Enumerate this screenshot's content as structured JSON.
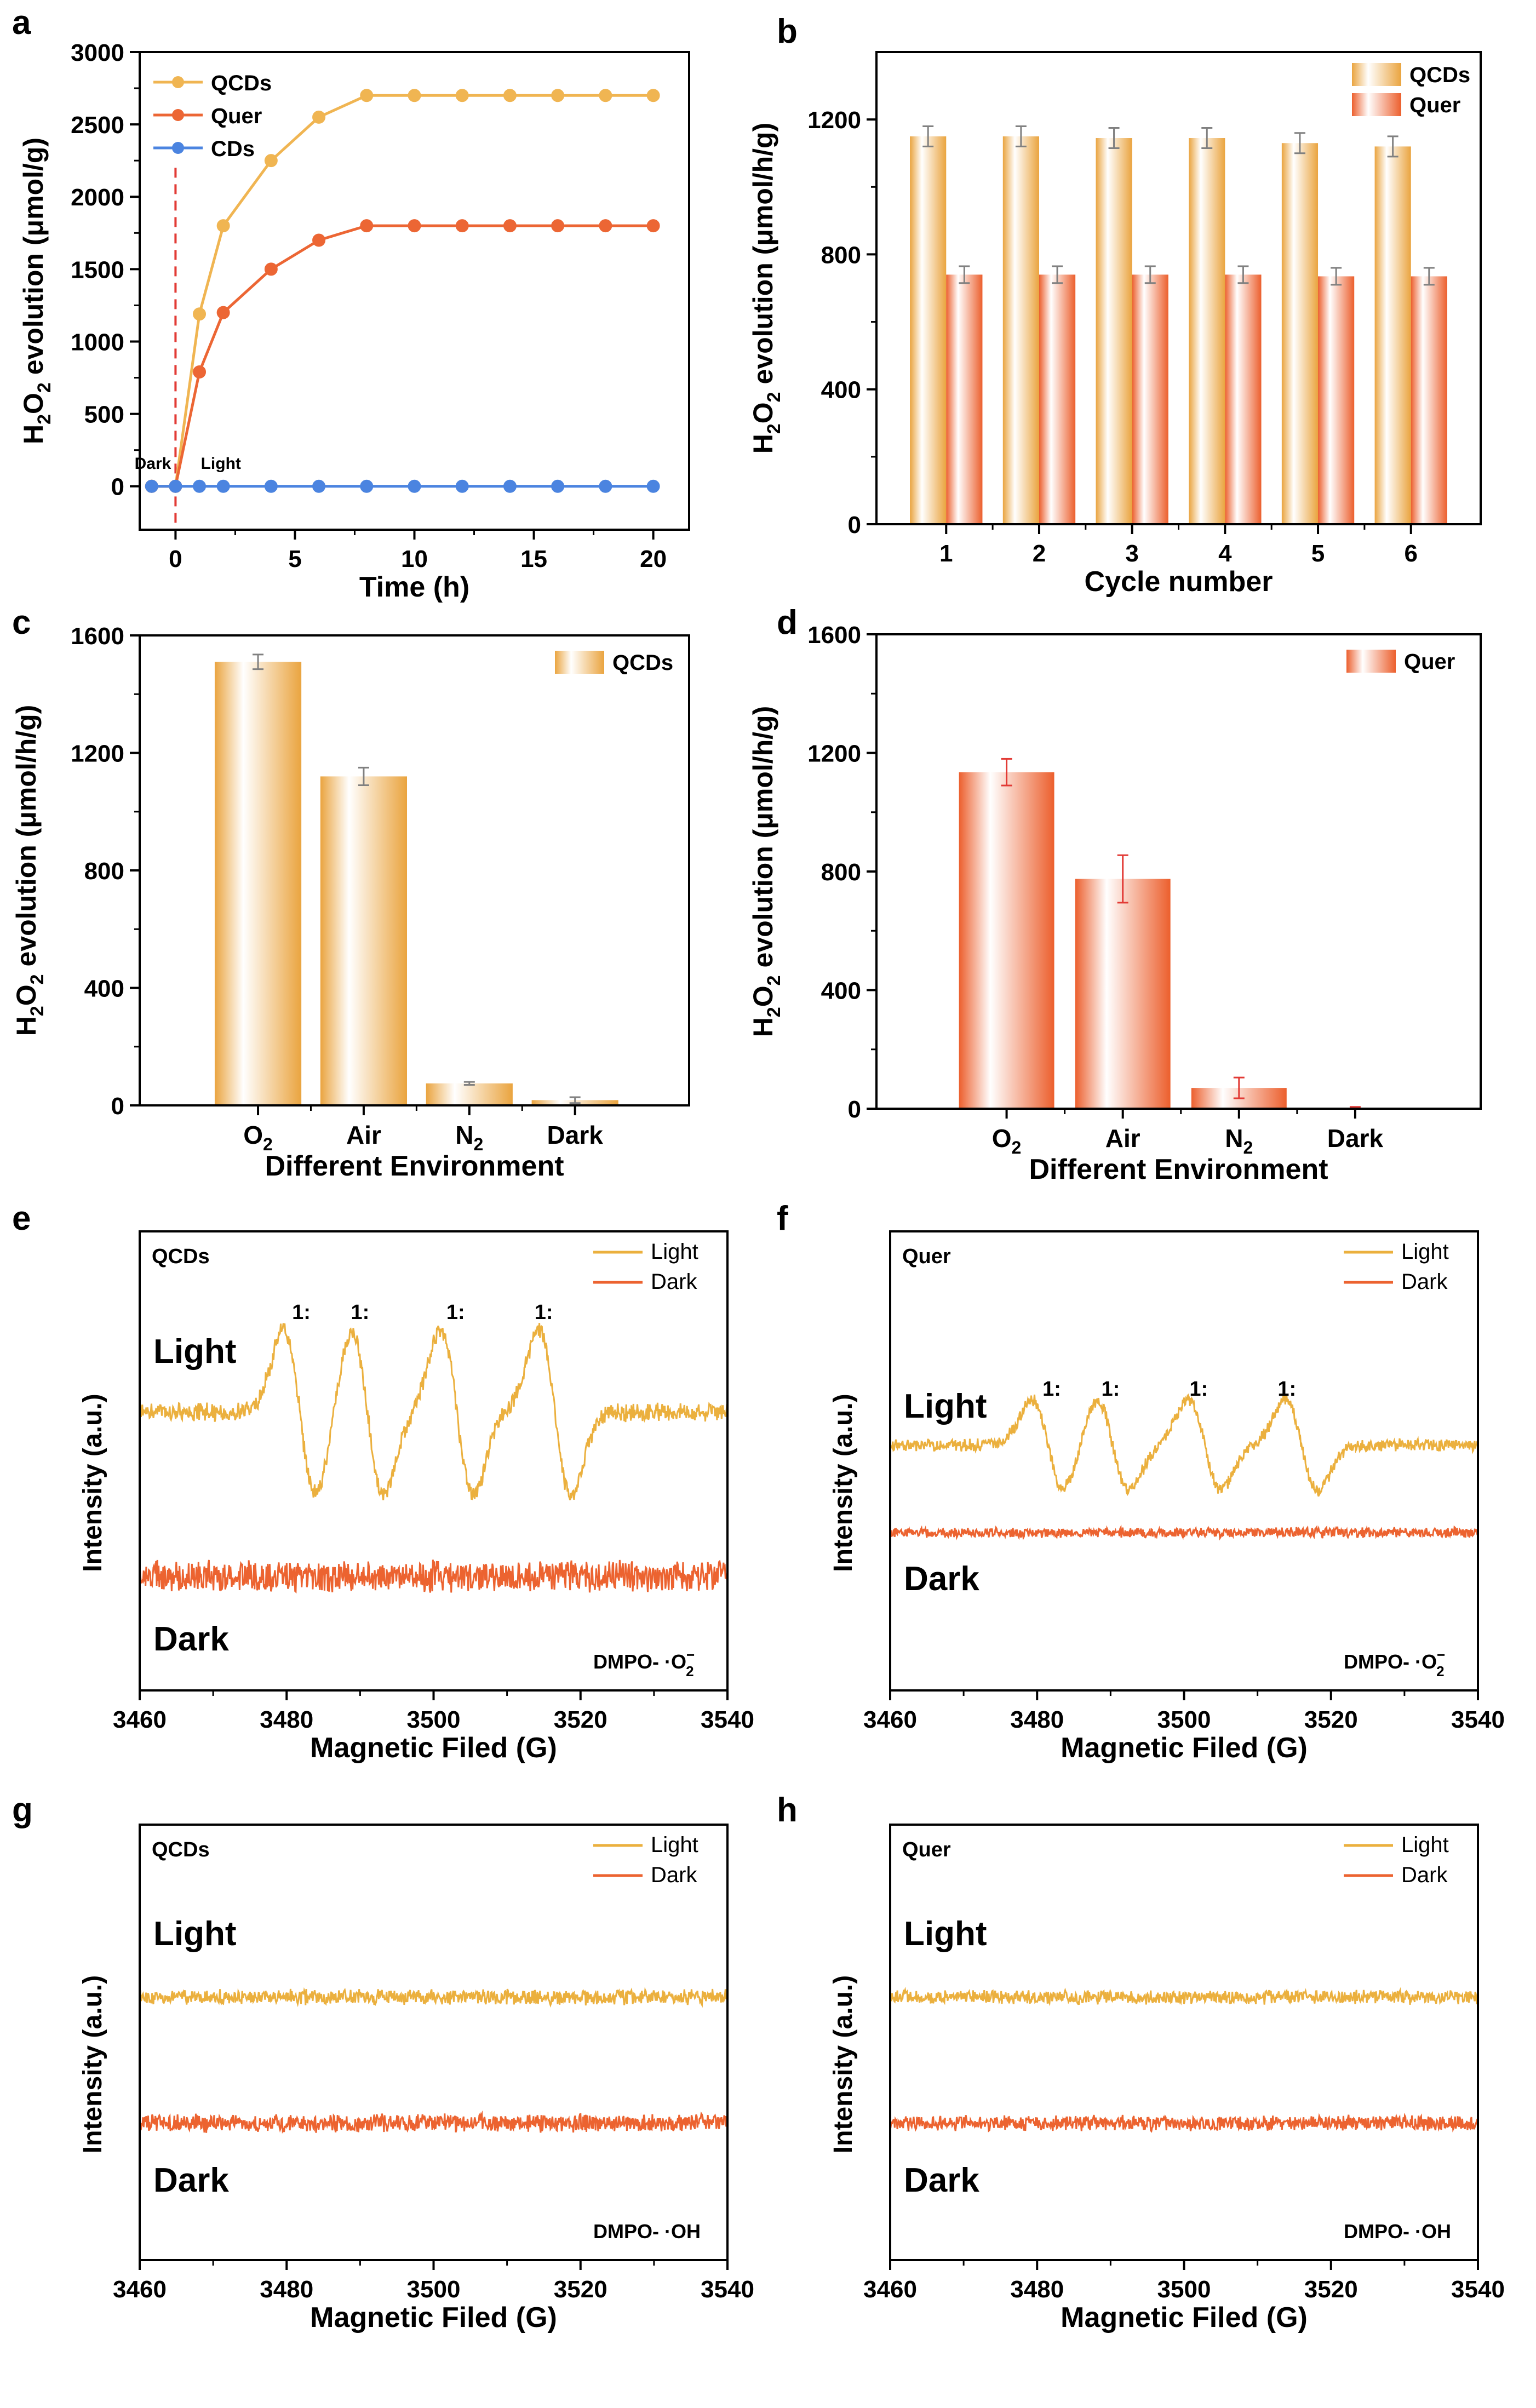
{
  "colors": {
    "qcds": "#F0B552",
    "quer": "#EC6634",
    "cds": "#4B84E0",
    "light": "#EBB03E",
    "dark": "#EC6330",
    "err": "#E23A35",
    "gray": "#808080"
  },
  "chart_data": [
    {
      "id": "a",
      "type": "line",
      "panel_label": "a",
      "xlabel": "Time (h)",
      "ylabel_parts": [
        "H",
        "2",
        "O",
        "2",
        " evolution (μmol/g)"
      ],
      "xlim": [
        -1.5,
        21.5
      ],
      "ylim": [
        -300,
        3000
      ],
      "xticks": [
        0,
        5,
        10,
        15,
        20
      ],
      "yticks": [
        0,
        500,
        1000,
        1500,
        2000,
        2500,
        3000
      ],
      "series": [
        {
          "name": "QCDs",
          "color_key": "qcds",
          "x": [
            -1,
            0,
            1,
            2,
            4,
            6,
            8,
            10,
            12,
            14,
            16,
            18,
            20
          ],
          "values": [
            0,
            0,
            1190,
            1800,
            2250,
            2550,
            2700,
            2700,
            2700,
            2700,
            2700,
            2700,
            2700
          ]
        },
        {
          "name": "Quer",
          "color_key": "quer",
          "x": [
            -1,
            0,
            1,
            2,
            4,
            6,
            8,
            10,
            12,
            14,
            16,
            18,
            20
          ],
          "values": [
            0,
            0,
            790,
            1200,
            1500,
            1700,
            1800,
            1800,
            1800,
            1800,
            1800,
            1800,
            1800
          ]
        },
        {
          "name": "CDs",
          "color_key": "cds",
          "x": [
            -1,
            0,
            1,
            2,
            4,
            6,
            8,
            10,
            12,
            14,
            16,
            18,
            20
          ],
          "values": [
            0,
            0,
            0,
            0,
            0,
            0,
            0,
            0,
            0,
            0,
            0,
            0,
            0
          ]
        }
      ],
      "annotations": [
        "Dark",
        "Light"
      ],
      "divider_x": 0
    },
    {
      "id": "b",
      "type": "bar",
      "panel_label": "b",
      "xlabel": "Cycle number",
      "ylabel_parts": [
        "H",
        "2",
        "O",
        "2",
        " evolution (μmol/h/g)"
      ],
      "ylim": [
        0,
        1400
      ],
      "yticks": [
        0,
        400,
        800,
        1200
      ],
      "categories": [
        "1",
        "2",
        "3",
        "4",
        "5",
        "6"
      ],
      "series": [
        {
          "name": "QCDs",
          "color_key": "qcds",
          "values": [
            1150,
            1150,
            1145,
            1145,
            1130,
            1120
          ],
          "errors": [
            30,
            30,
            30,
            30,
            30,
            30
          ]
        },
        {
          "name": "Quer",
          "color_key": "quer",
          "values": [
            740,
            740,
            740,
            740,
            735,
            735
          ],
          "errors": [
            25,
            25,
            25,
            25,
            25,
            25
          ]
        }
      ]
    },
    {
      "id": "c",
      "type": "bar",
      "panel_label": "c",
      "xlabel": "Different Environment",
      "ylabel_parts": [
        "H",
        "2",
        "O",
        "2",
        " evolution (μmol/h/g)"
      ],
      "ylim": [
        0,
        1600
      ],
      "yticks": [
        0,
        400,
        800,
        1200,
        1600
      ],
      "categories": [
        [
          "O",
          "2"
        ],
        [
          "Air",
          ""
        ],
        [
          "N",
          "2"
        ],
        [
          "Dark",
          ""
        ]
      ],
      "series": [
        {
          "name": "QCDs",
          "color_key": "qcds",
          "values": [
            1510,
            1120,
            75,
            18
          ],
          "errors": [
            25,
            30,
            5,
            10
          ]
        }
      ]
    },
    {
      "id": "d",
      "type": "bar",
      "panel_label": "d",
      "xlabel": "Different Environment",
      "ylabel_parts": [
        "H",
        "2",
        "O",
        "2",
        " evolution (μmol/h/g)"
      ],
      "ylim": [
        0,
        1600
      ],
      "yticks": [
        0,
        400,
        800,
        1200,
        1600
      ],
      "categories": [
        [
          "O",
          "2"
        ],
        [
          "Air",
          ""
        ],
        [
          "N",
          "2"
        ],
        [
          "Dark",
          ""
        ]
      ],
      "series": [
        {
          "name": "Quer",
          "color_key": "quer",
          "values": [
            1135,
            775,
            70,
            3
          ],
          "errors": [
            45,
            80,
            35,
            3
          ]
        }
      ]
    },
    {
      "id": "e",
      "type": "line",
      "panel_label": "e",
      "sample": "QCDs",
      "probe": "DMPO- ·O",
      "probe_sup": "−",
      "probe_sub": "2",
      "xlabel": "Magnetic Filed (G)",
      "ylabel": "Intensity (a.u.)",
      "xlim": [
        3460,
        3540
      ],
      "xticks": [
        3460,
        3480,
        3500,
        3520,
        3540
      ],
      "legend": [
        "Light",
        "Dark"
      ],
      "trace_labels": [
        "Light",
        "Dark"
      ],
      "peak_labels": [
        "1:",
        "1:",
        "1:",
        "1:"
      ],
      "peak_x": [
        3482,
        3490,
        3503,
        3515
      ],
      "series": [
        {
          "name": "Light",
          "peaks": [
            3481.8,
            3491,
            3503.2,
            3516.5
          ],
          "amplitude": 1.0
        },
        {
          "name": "Dark",
          "peaks": [],
          "amplitude": 0
        }
      ]
    },
    {
      "id": "f",
      "type": "line",
      "panel_label": "f",
      "sample": "Quer",
      "probe": "DMPO- ·O",
      "probe_sup": "−",
      "probe_sub": "2",
      "xlabel": "Magnetic Filed (G)",
      "ylabel": "Intensity (a.u.)",
      "xlim": [
        3460,
        3540
      ],
      "xticks": [
        3460,
        3480,
        3500,
        3520,
        3540
      ],
      "legend": [
        "Light",
        "Dark"
      ],
      "trace_labels": [
        "Light",
        "Dark"
      ],
      "peak_labels": [
        "1:",
        "1:",
        "1:",
        "1:"
      ],
      "peak_x": [
        3482,
        3490,
        3502,
        3514
      ],
      "series": [
        {
          "name": "Light",
          "peaks": [
            3481.5,
            3490.3,
            3502.8,
            3516
          ],
          "amplitude": 0.55
        },
        {
          "name": "Dark",
          "peaks": [],
          "amplitude": 0
        }
      ]
    },
    {
      "id": "g",
      "type": "line",
      "panel_label": "g",
      "sample": "QCDs",
      "probe": "DMPO- ·OH",
      "xlabel": "Magnetic Filed (G)",
      "ylabel": "Intensity (a.u.)",
      "xlim": [
        3460,
        3540
      ],
      "xticks": [
        3460,
        3480,
        3500,
        3520,
        3540
      ],
      "legend": [
        "Light",
        "Dark"
      ],
      "trace_labels": [
        "Light",
        "Dark"
      ],
      "series": [
        {
          "name": "Light",
          "peaks": [],
          "amplitude": 0
        },
        {
          "name": "Dark",
          "peaks": [],
          "amplitude": 0
        }
      ]
    },
    {
      "id": "h",
      "type": "line",
      "panel_label": "h",
      "sample": "Quer",
      "probe": "DMPO- ·OH",
      "xlabel": "Magnetic Filed (G)",
      "ylabel": "Intensity (a.u.)",
      "xlim": [
        3460,
        3540
      ],
      "xticks": [
        3460,
        3480,
        3500,
        3520,
        3540
      ],
      "legend": [
        "Light",
        "Dark"
      ],
      "trace_labels": [
        "Light",
        "Dark"
      ],
      "series": [
        {
          "name": "Light",
          "peaks": [],
          "amplitude": 0
        },
        {
          "name": "Dark",
          "peaks": [],
          "amplitude": 0
        }
      ]
    }
  ]
}
